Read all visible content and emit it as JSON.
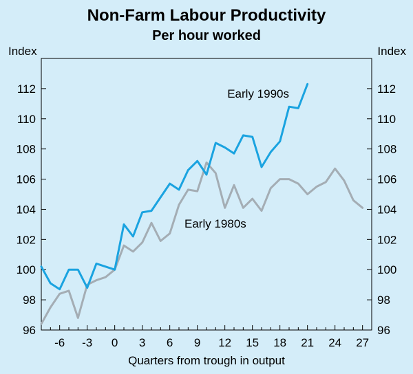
{
  "chart_data": {
    "type": "line",
    "title": "Non-Farm Labour Productivity",
    "subtitle": "Per hour worked",
    "ylabel_left": "Index",
    "ylabel_right": "Index",
    "xlabel": "Quarters from trough in output",
    "xlim": [
      -8,
      28
    ],
    "ylim": [
      96,
      114
    ],
    "xticks": [
      -6,
      -3,
      0,
      3,
      6,
      9,
      12,
      15,
      18,
      21,
      24,
      27
    ],
    "yticks": [
      96,
      98,
      100,
      102,
      104,
      106,
      108,
      110,
      112
    ],
    "series": [
      {
        "name": "Early 1990s",
        "color": "#1aa3e0",
        "x": [
          -8,
          -7,
          -6,
          -5,
          -4,
          -3,
          -2,
          -1,
          0,
          1,
          2,
          3,
          4,
          5,
          6,
          7,
          8,
          9,
          10,
          11,
          12,
          13,
          14,
          15,
          16,
          17,
          18,
          19,
          20,
          21
        ],
        "values": [
          100.2,
          99.1,
          98.7,
          100.0,
          100.0,
          98.8,
          100.4,
          100.2,
          100.0,
          103.0,
          102.2,
          103.8,
          103.9,
          104.8,
          105.7,
          105.3,
          106.6,
          107.2,
          106.3,
          108.4,
          108.1,
          107.7,
          108.9,
          108.8,
          106.8,
          107.8,
          108.5,
          110.8,
          110.7,
          112.3
        ]
      },
      {
        "name": "Early 1980s",
        "color": "#a4adb4",
        "x": [
          -8,
          -7,
          -6,
          -5,
          -4,
          -3,
          -2,
          -1,
          0,
          1,
          2,
          3,
          4,
          5,
          6,
          7,
          8,
          9,
          10,
          11,
          12,
          13,
          14,
          15,
          16,
          17,
          18,
          19,
          20,
          21,
          22,
          23,
          24,
          25,
          26,
          27
        ],
        "values": [
          96.4,
          97.5,
          98.4,
          98.6,
          96.8,
          99.0,
          99.3,
          99.5,
          100.0,
          101.6,
          101.2,
          101.8,
          103.1,
          101.9,
          102.4,
          104.3,
          105.3,
          105.2,
          107.1,
          106.4,
          104.1,
          105.6,
          104.1,
          104.7,
          103.9,
          105.4,
          106.0,
          106.0,
          105.7,
          105.0,
          105.5,
          105.8,
          106.7,
          105.9,
          104.6,
          104.1
        ]
      }
    ],
    "annotations": [
      {
        "text": "Early 1990s",
        "series": "Early 1990s"
      },
      {
        "text": "Early 1980s",
        "series": "Early 1980s"
      }
    ]
  }
}
